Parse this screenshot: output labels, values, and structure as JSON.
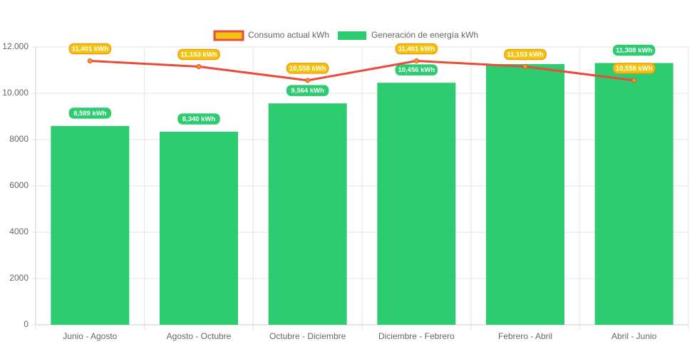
{
  "chart_data": {
    "type": "bar-line",
    "categories": [
      "Junio - Agosto",
      "Agosto - Octubre",
      "Octubre - Diciembre",
      "Diciembre - Febrero",
      "Febrero - Abril",
      "Abril - Junio"
    ],
    "series": [
      {
        "name": "Consumo actual kWh",
        "type": "line",
        "color": "#e74c3c",
        "point_color": "#f39c12",
        "label_color": "#f1c40f",
        "values": [
          11401,
          11153,
          10558,
          11401,
          11153,
          10558
        ],
        "value_labels": [
          "11,401 kWh",
          "11,153 kWh",
          "10,558 kWh",
          "11,401 kWh",
          "11,153 kWh",
          "10,558 kWh"
        ]
      },
      {
        "name": "Generación de energía kWh",
        "type": "bar",
        "color": "#2ecc71",
        "values": [
          8589,
          8340,
          9564,
          10456,
          11262,
          11308
        ],
        "value_labels": [
          "8,589 kWh",
          "8,340 kWh",
          "9,564 kWh",
          "10,456 kWh",
          null,
          "11,308 kWh"
        ]
      }
    ],
    "ylim": [
      0,
      12000
    ],
    "yticks": [
      0,
      2000,
      4000,
      6000,
      8000,
      {
        "value": 10000,
        "label": "10.000"
      },
      {
        "value": 12000,
        "label": "12.000"
      }
    ],
    "grid": true,
    "legend": "top"
  }
}
